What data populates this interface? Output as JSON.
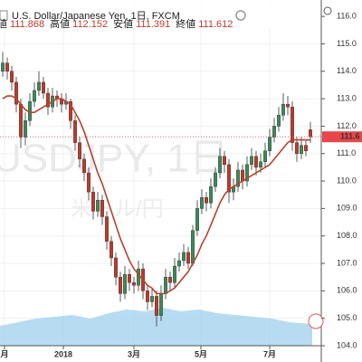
{
  "chart_data": {
    "type": "candlestick",
    "title": "U.S. Dollar/Japanese Yen, 1日, FXCM",
    "watermark": "USDJPY, 1日",
    "watermark_sub": "米ドル/円",
    "ohlc_labels": [
      "値",
      "高値",
      "安値",
      "終値"
    ],
    "open": [
      114.0,
      114.3,
      114.0,
      113.6,
      112.8,
      111.6,
      112.2,
      112.9,
      113.3,
      113.6,
      113.2,
      112.7,
      113.1,
      113.0,
      112.8,
      112.9,
      112.2,
      111.4,
      110.8,
      110.3,
      109.6,
      108.9,
      109.3,
      108.7,
      107.8,
      107.2,
      106.5,
      105.9,
      106.6,
      106.3,
      106.2,
      106.8,
      106.0,
      105.6,
      105.8,
      105.1,
      105.9,
      106.5,
      106.3,
      106.9,
      107.1,
      107.4,
      107.0,
      108.2,
      109.0,
      109.4,
      109.2,
      109.8,
      110.3,
      110.9,
      110.6,
      109.6,
      109.8,
      110.4,
      110.0,
      110.6,
      110.9,
      110.5,
      110.7,
      111.1,
      111.6,
      112.0,
      112.4,
      112.8,
      112.7,
      111.4,
      111.0,
      111.3,
      111.868
    ],
    "high": [
      114.7,
      114.5,
      114.2,
      113.8,
      113.0,
      112.5,
      113.2,
      113.6,
      114.0,
      113.8,
      113.4,
      113.4,
      113.3,
      113.2,
      113.2,
      113.0,
      112.4,
      111.6,
      111.0,
      110.5,
      109.8,
      109.6,
      109.5,
      108.9,
      108.0,
      107.4,
      106.7,
      106.9,
      106.8,
      106.5,
      107.1,
      107.0,
      106.2,
      106.1,
      106.0,
      106.2,
      106.8,
      106.7,
      107.2,
      107.4,
      107.7,
      107.6,
      108.4,
      109.3,
      109.7,
      109.6,
      110.1,
      110.5,
      111.2,
      111.1,
      110.8,
      110.1,
      110.7,
      110.6,
      110.9,
      111.2,
      111.1,
      111.0,
      111.4,
      111.9,
      112.3,
      112.7,
      113.2,
      113.1,
      112.9,
      111.6,
      111.6,
      111.5,
      112.152
    ],
    "low": [
      113.8,
      113.7,
      113.3,
      112.5,
      111.2,
      111.3,
      112.0,
      112.7,
      113.1,
      113.0,
      112.4,
      112.5,
      112.7,
      112.5,
      112.6,
      111.9,
      111.1,
      110.5,
      110.0,
      109.3,
      108.6,
      108.7,
      108.4,
      107.5,
      106.9,
      106.2,
      105.6,
      105.7,
      106.0,
      105.9,
      106.0,
      105.7,
      105.3,
      105.4,
      104.7,
      104.9,
      105.7,
      106.0,
      106.1,
      106.7,
      106.9,
      106.8,
      106.9,
      108.0,
      108.8,
      108.9,
      109.0,
      109.6,
      110.1,
      110.3,
      109.2,
      109.3,
      109.6,
      109.7,
      109.8,
      110.4,
      110.2,
      110.3,
      110.5,
      110.9,
      111.4,
      111.8,
      112.2,
      112.4,
      111.1,
      110.7,
      110.8,
      110.9,
      111.391
    ],
    "close": [
      114.3,
      114.0,
      113.6,
      112.8,
      111.6,
      112.2,
      112.9,
      113.3,
      113.6,
      113.2,
      112.7,
      113.1,
      113.0,
      112.8,
      112.9,
      112.2,
      111.4,
      110.8,
      110.3,
      109.6,
      108.9,
      109.3,
      108.7,
      107.8,
      107.2,
      106.5,
      105.9,
      106.6,
      106.3,
      106.2,
      106.8,
      106.0,
      105.6,
      105.8,
      105.1,
      105.9,
      106.5,
      106.3,
      106.9,
      107.1,
      107.4,
      107.0,
      108.2,
      109.0,
      109.4,
      109.2,
      109.8,
      110.3,
      110.9,
      110.6,
      109.6,
      109.8,
      110.4,
      110.0,
      110.6,
      110.9,
      110.5,
      110.7,
      111.1,
      111.6,
      112.0,
      112.4,
      112.8,
      112.7,
      111.4,
      111.0,
      111.3,
      111.1,
      111.612
    ],
    "series": [
      {
        "color": "#b5432f",
        "values": [
          113.0,
          113.1,
          113.1,
          113.0,
          112.8,
          112.6,
          112.5,
          112.5,
          112.6,
          112.7,
          112.8,
          112.9,
          113.0,
          113.0,
          112.9,
          112.8,
          112.5,
          112.2,
          111.8,
          111.3,
          110.8,
          110.3,
          109.9,
          109.4,
          108.9,
          108.4,
          107.9,
          107.5,
          107.1,
          106.8,
          106.6,
          106.4,
          106.2,
          106.1,
          105.9,
          105.9,
          105.9,
          106.0,
          106.1,
          106.3,
          106.5,
          106.7,
          107.0,
          107.3,
          107.7,
          108.0,
          108.4,
          108.8,
          109.2,
          109.5,
          109.7,
          109.8,
          109.9,
          110.0,
          110.1,
          110.2,
          110.3,
          110.4,
          110.5,
          110.6,
          110.8,
          111.0,
          111.2,
          111.4,
          111.5,
          111.5,
          111.5,
          111.5,
          111.5
        ]
      }
    ],
    "up_color": "#3c8a5a",
    "down_color": "#c0392b",
    "price_tag": "111.6",
    "price_tag_color": "#e8474a",
    "ylim": [
      104,
      116.3
    ],
    "yticks": [
      {
        "value": 104,
        "label": "104.0"
      },
      {
        "value": 105,
        "label": "105.0"
      },
      {
        "value": 106,
        "label": "106.0"
      },
      {
        "value": 107,
        "label": "107.0"
      },
      {
        "value": 108,
        "label": "108.0"
      },
      {
        "value": 109,
        "label": "109.0"
      },
      {
        "value": 110,
        "label": "110.0"
      },
      {
        "value": 111,
        "label": "111.0"
      },
      {
        "value": 112,
        "label": "112.0"
      },
      {
        "value": 113,
        "label": "113.0"
      },
      {
        "value": 114,
        "label": "114.0"
      },
      {
        "value": 115,
        "label": "115.0"
      },
      {
        "value": 116,
        "label": "116.0"
      }
    ],
    "xticks": [
      {
        "value": 0.4,
        "label": "月"
      },
      {
        "value": 13.4,
        "label": "2018"
      },
      {
        "value": 29,
        "label": "3月"
      },
      {
        "value": 43.8,
        "label": "5月"
      },
      {
        "value": 59,
        "label": "7月"
      }
    ],
    "grid": true
  }
}
